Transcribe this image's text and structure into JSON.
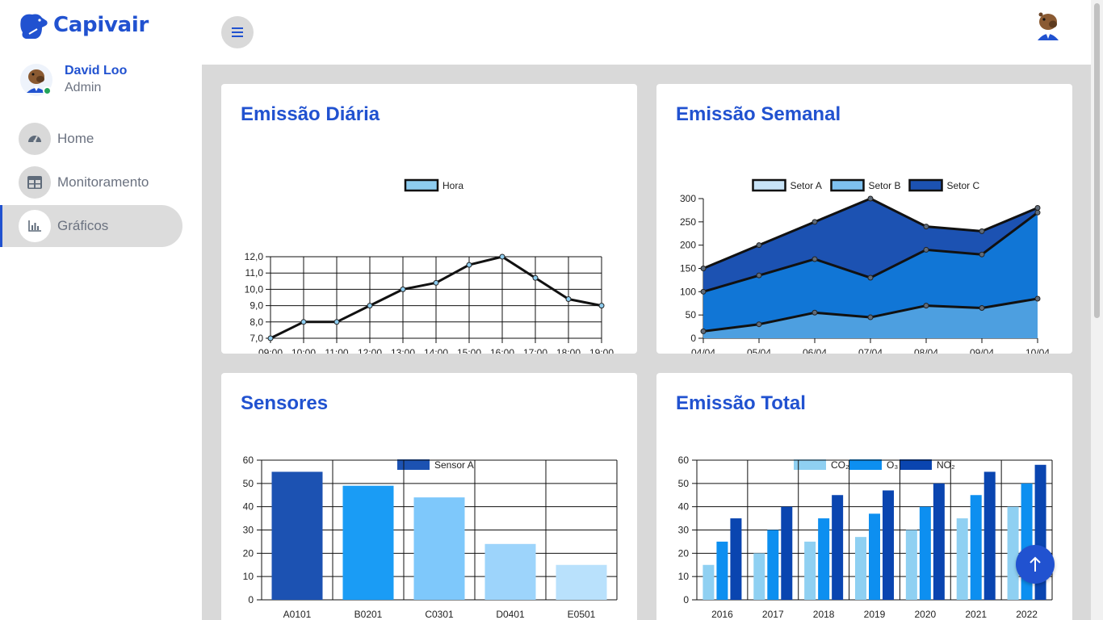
{
  "brand": {
    "name": "Capivair"
  },
  "user": {
    "name": "David Loo",
    "role": "Admin"
  },
  "nav": [
    {
      "label": "Home",
      "icon": "dashboard-gauge-icon",
      "active": false
    },
    {
      "label": "Monitoramento",
      "icon": "table-icon",
      "active": false
    },
    {
      "label": "Gráficos",
      "icon": "bar-chart-icon",
      "active": true
    }
  ],
  "colors": {
    "accent": "#2152d0",
    "nav_bg": "#d9d9d9",
    "content_bg": "#d9d9d9",
    "online": "#22a35a"
  },
  "cards": {
    "daily": {
      "title": "Emissão Diária"
    },
    "weekly": {
      "title": "Emissão Semanal"
    },
    "sensors": {
      "title": "Sensores"
    },
    "total": {
      "title": "Emissão Total"
    }
  },
  "chart_data": [
    {
      "id": "daily",
      "type": "line",
      "title": "",
      "x": [
        "09:00",
        "10:00",
        "11:00",
        "12:00",
        "13:00",
        "14:00",
        "15:00",
        "16:00",
        "17:00",
        "18:00",
        "19:00"
      ],
      "series": [
        {
          "name": "Hora",
          "color": "#8ecdf0",
          "values": [
            7.0,
            8.0,
            8.0,
            9.0,
            10.0,
            10.4,
            11.5,
            12.0,
            10.7,
            9.4,
            9.0
          ]
        }
      ],
      "ylim": [
        7,
        12
      ],
      "yticks": [
        "7,0",
        "8,0",
        "9,0",
        "10,0",
        "11,0",
        "12,0"
      ],
      "legend_position": "top",
      "grid": true
    },
    {
      "id": "weekly",
      "type": "area",
      "title": "",
      "x": [
        "04/04",
        "05/04",
        "06/04",
        "07/04",
        "08/04",
        "09/04",
        "10/04"
      ],
      "series": [
        {
          "name": "Setor A",
          "color": "#4d9fe0",
          "legend_fill": "#c8e4f8",
          "values": [
            15,
            30,
            55,
            45,
            70,
            65,
            85
          ]
        },
        {
          "name": "Setor B",
          "color": "#1176d6",
          "legend_fill": "#7ec1f0",
          "values": [
            100,
            135,
            170,
            130,
            190,
            180,
            270
          ]
        },
        {
          "name": "Setor C",
          "color": "#1c52b2",
          "legend_fill": "#1c52b2",
          "values": [
            150,
            200,
            250,
            300,
            240,
            230,
            280
          ]
        }
      ],
      "ylim": [
        0,
        300
      ],
      "yticks": [
        "0",
        "50",
        "100",
        "150",
        "200",
        "250",
        "300"
      ],
      "legend_position": "top",
      "grid": false
    },
    {
      "id": "sensors",
      "type": "bar",
      "title": "",
      "categories": [
        "A0101",
        "B0201",
        "C0301",
        "D0401",
        "E0501"
      ],
      "series": [
        {
          "name": "Sensor A",
          "color": "#1c52b2",
          "values": [
            55,
            49,
            44,
            24,
            15
          ]
        }
      ],
      "bar_colors": [
        "#1c52b2",
        "#1a9cf5",
        "#7ec8fb",
        "#9dd4fb",
        "#b9e1fc"
      ],
      "ylim": [
        0,
        60
      ],
      "yticks": [
        "0",
        "10",
        "20",
        "30",
        "40",
        "50",
        "60"
      ],
      "legend_position": "top",
      "grid": true
    },
    {
      "id": "total",
      "type": "bar",
      "title": "",
      "categories": [
        "2016",
        "2017",
        "2018",
        "2019",
        "2020",
        "2021",
        "2022"
      ],
      "series": [
        {
          "name": "CO₂",
          "color": "#8fd0f2",
          "values": [
            15,
            20,
            25,
            27,
            30,
            35,
            40
          ]
        },
        {
          "name": "O₃",
          "color": "#0d8ff0",
          "values": [
            25,
            30,
            35,
            37,
            40,
            45,
            50
          ]
        },
        {
          "name": "NO₂",
          "color": "#0a45b0",
          "values": [
            35,
            40,
            45,
            47,
            50,
            55,
            58
          ]
        }
      ],
      "ylim": [
        0,
        60
      ],
      "yticks": [
        "0",
        "10",
        "20",
        "30",
        "40",
        "50",
        "60"
      ],
      "legend_position": "top",
      "grid": true
    }
  ]
}
